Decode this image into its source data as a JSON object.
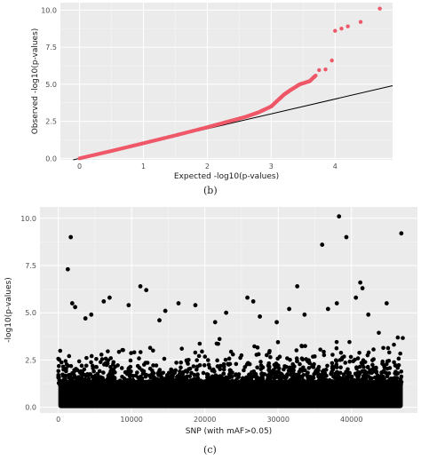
{
  "chart_data": [
    {
      "type": "scatter",
      "panel": "(b)",
      "xlabel": "Expected -log10(p-values)",
      "ylabel": "Observed -log10(p-values)",
      "xlim": [
        -0.3,
        4.9
      ],
      "ylim": [
        -0.1,
        10.5
      ],
      "x_ticks": [
        0,
        1,
        2,
        3,
        4
      ],
      "y_ticks": [
        0.0,
        2.5,
        5.0,
        7.5,
        10.0
      ],
      "y_tick_labels": [
        "0.0",
        "2.5",
        "5.0",
        "7.5",
        "10.0"
      ],
      "grid": true,
      "background": "#ebebeb",
      "point_color": "#ef5868",
      "reference_line": {
        "slope": 1,
        "intercept": 0,
        "color": "#000000"
      },
      "curve_points": [
        [
          0,
          0
        ],
        [
          0.5,
          0.5
        ],
        [
          1.0,
          1.02
        ],
        [
          1.5,
          1.55
        ],
        [
          2.0,
          2.1
        ],
        [
          2.3,
          2.45
        ],
        [
          2.6,
          2.8
        ],
        [
          2.8,
          3.1
        ],
        [
          3.0,
          3.5
        ],
        [
          3.1,
          3.9
        ],
        [
          3.2,
          4.3
        ],
        [
          3.3,
          4.6
        ],
        [
          3.45,
          5.0
        ],
        [
          3.6,
          5.2
        ],
        [
          3.7,
          5.6
        ]
      ],
      "tail_points": [
        [
          3.75,
          5.95
        ],
        [
          3.85,
          6.0
        ],
        [
          3.95,
          6.6
        ],
        [
          4.0,
          8.6
        ],
        [
          4.1,
          8.75
        ],
        [
          4.2,
          8.9
        ],
        [
          4.4,
          9.2
        ],
        [
          4.7,
          10.1
        ]
      ]
    },
    {
      "type": "scatter",
      "panel": "(c)",
      "xlabel": "SNP (with mAF>0.05)",
      "ylabel": "-log10(p-values)",
      "xlim": [
        -2500,
        49000
      ],
      "ylim": [
        -0.3,
        10.6
      ],
      "x_ticks": [
        0,
        10000,
        20000,
        30000,
        40000
      ],
      "y_ticks": [
        0.0,
        2.5,
        5.0,
        7.5,
        10.0
      ],
      "y_tick_labels": [
        "0.0",
        "2.5",
        "5.0",
        "7.5",
        "10.0"
      ],
      "grid": true,
      "background": "#ebebeb",
      "point_color": "#000000",
      "n_snps": 47000,
      "top_hits": [
        [
          38300,
          10.1
        ],
        [
          39300,
          9.0
        ],
        [
          1700,
          9.0
        ],
        [
          46800,
          9.2
        ],
        [
          36000,
          8.6
        ],
        [
          1300,
          7.3
        ],
        [
          41200,
          6.6
        ],
        [
          41500,
          6.3
        ],
        [
          11200,
          6.4
        ],
        [
          12000,
          6.2
        ],
        [
          32600,
          6.4
        ],
        [
          25800,
          5.8
        ],
        [
          26600,
          5.6
        ],
        [
          7000,
          5.8
        ],
        [
          6200,
          5.6
        ],
        [
          44800,
          5.5
        ],
        [
          16400,
          5.5
        ],
        [
          18700,
          5.4
        ],
        [
          9600,
          5.4
        ],
        [
          1900,
          5.5
        ],
        [
          2300,
          5.3
        ],
        [
          22900,
          5.0
        ],
        [
          31500,
          5.2
        ],
        [
          14600,
          5.1
        ],
        [
          38000,
          5.5
        ],
        [
          36800,
          5.2
        ],
        [
          40600,
          5.8
        ],
        [
          3700,
          4.7
        ],
        [
          13800,
          4.6
        ],
        [
          27500,
          4.8
        ],
        [
          33600,
          4.9
        ],
        [
          42300,
          4.9
        ],
        [
          4500,
          4.9
        ],
        [
          21400,
          4.5
        ],
        [
          29800,
          4.5
        ]
      ]
    }
  ],
  "captions": {
    "b": "(b)",
    "c": "(c)"
  }
}
